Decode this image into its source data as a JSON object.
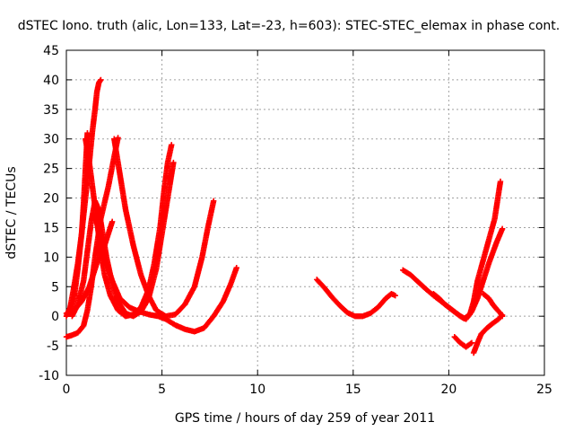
{
  "chart_data": {
    "type": "scatter",
    "title": "dSTEC Iono. truth (alic, Lon=133, Lat=-23, h=603): STEC-STEC_elemax in phase cont.",
    "xlabel": "GPS time / hours of day 259 of year 2011",
    "ylabel": "dSTEC  / TECUs",
    "xlim": [
      0,
      25
    ],
    "ylim": [
      -10,
      45
    ],
    "xticks": [
      0,
      5,
      10,
      15,
      20,
      25
    ],
    "yticks": [
      -10,
      -5,
      0,
      5,
      10,
      15,
      20,
      25,
      30,
      35,
      40,
      45
    ],
    "grid": true,
    "marker": "plus",
    "color": "#ff0000",
    "series": [
      {
        "values": [
          [
            0.0,
            -3.5
          ],
          [
            0.3,
            -3.2
          ],
          [
            0.6,
            -2.8
          ],
          [
            0.9,
            -1.6
          ],
          [
            1.1,
            1.0
          ],
          [
            1.3,
            5.0
          ],
          [
            1.5,
            10.0
          ],
          [
            1.8,
            16.5
          ],
          [
            2.2,
            22.0
          ],
          [
            2.5,
            27.0
          ],
          [
            2.7,
            30.2
          ]
        ]
      },
      {
        "values": [
          [
            0.0,
            0.0
          ],
          [
            0.2,
            1.5
          ],
          [
            0.4,
            5.0
          ],
          [
            0.6,
            9.0
          ],
          [
            0.8,
            14.0
          ],
          [
            1.0,
            20.0
          ],
          [
            1.2,
            26.0
          ],
          [
            1.35,
            31.0
          ],
          [
            1.5,
            35.0
          ],
          [
            1.6,
            38.0
          ],
          [
            1.7,
            39.5
          ],
          [
            1.8,
            40.0
          ]
        ]
      },
      {
        "values": [
          [
            0.2,
            0.5
          ],
          [
            0.4,
            3.0
          ],
          [
            0.6,
            8.0
          ],
          [
            0.8,
            14.0
          ],
          [
            0.9,
            19.0
          ],
          [
            1.0,
            25.0
          ],
          [
            1.05,
            28.0
          ],
          [
            1.1,
            31.0
          ]
        ]
      },
      {
        "values": [
          [
            1.0,
            30.0
          ],
          [
            1.2,
            26.0
          ],
          [
            1.4,
            21.0
          ],
          [
            1.6,
            16.0
          ],
          [
            1.8,
            11.0
          ],
          [
            2.0,
            7.0
          ],
          [
            2.3,
            3.5
          ],
          [
            2.7,
            1.0
          ],
          [
            3.1,
            0.0
          ],
          [
            3.5,
            0.3
          ],
          [
            3.9,
            1.5
          ],
          [
            4.3,
            4.5
          ],
          [
            4.6,
            9.0
          ],
          [
            4.9,
            15.0
          ],
          [
            5.1,
            21.0
          ],
          [
            5.3,
            26.0
          ],
          [
            5.5,
            29.0
          ]
        ]
      },
      {
        "values": [
          [
            0.3,
            0.0
          ],
          [
            0.6,
            2.0
          ],
          [
            0.9,
            6.0
          ],
          [
            1.1,
            11.0
          ],
          [
            1.3,
            16.0
          ],
          [
            1.5,
            19.5
          ],
          [
            1.7,
            18.0
          ],
          [
            1.9,
            14.0
          ],
          [
            2.1,
            10.0
          ],
          [
            2.4,
            5.5
          ],
          [
            2.7,
            2.5
          ],
          [
            3.1,
            0.5
          ],
          [
            3.5,
            0.0
          ],
          [
            3.9,
            0.8
          ],
          [
            4.3,
            3.0
          ],
          [
            4.7,
            8.0
          ],
          [
            5.0,
            14.0
          ],
          [
            5.3,
            20.0
          ],
          [
            5.6,
            26.0
          ]
        ]
      },
      {
        "values": [
          [
            0.0,
            0.5
          ],
          [
            0.4,
            1.0
          ],
          [
            0.8,
            2.5
          ],
          [
            1.2,
            5.0
          ],
          [
            1.6,
            9.0
          ],
          [
            2.0,
            12.0
          ],
          [
            2.4,
            16.0
          ]
        ]
      },
      {
        "values": [
          [
            2.5,
            30.0
          ],
          [
            2.8,
            24.0
          ],
          [
            3.1,
            18.0
          ],
          [
            3.5,
            12.0
          ],
          [
            3.9,
            7.0
          ],
          [
            4.3,
            3.5
          ],
          [
            4.7,
            1.0
          ],
          [
            5.2,
            0.0
          ],
          [
            5.7,
            0.3
          ],
          [
            6.2,
            2.0
          ],
          [
            6.7,
            5.0
          ],
          [
            7.1,
            10.0
          ],
          [
            7.4,
            15.0
          ],
          [
            7.7,
            19.5
          ]
        ]
      },
      {
        "values": [
          [
            1.5,
            17.0
          ],
          [
            1.8,
            13.0
          ],
          [
            2.1,
            9.0
          ],
          [
            2.4,
            6.0
          ],
          [
            2.8,
            3.0
          ],
          [
            3.3,
            1.5
          ],
          [
            3.8,
            0.8
          ],
          [
            4.3,
            0.3
          ],
          [
            4.8,
            0.0
          ],
          [
            5.2,
            -0.5
          ],
          [
            5.7,
            -1.5
          ],
          [
            6.2,
            -2.2
          ],
          [
            6.7,
            -2.6
          ],
          [
            7.2,
            -2.0
          ],
          [
            7.7,
            0.0
          ],
          [
            8.2,
            2.5
          ],
          [
            8.6,
            5.5
          ],
          [
            8.9,
            8.2
          ]
        ]
      },
      {
        "values": [
          [
            13.1,
            6.2
          ],
          [
            13.5,
            4.8
          ],
          [
            13.9,
            3.2
          ],
          [
            14.3,
            1.8
          ],
          [
            14.7,
            0.6
          ],
          [
            15.1,
            0.0
          ],
          [
            15.5,
            0.0
          ],
          [
            15.9,
            0.5
          ],
          [
            16.3,
            1.5
          ],
          [
            16.7,
            3.0
          ],
          [
            17.0,
            3.8
          ],
          [
            17.2,
            3.5
          ]
        ]
      },
      {
        "values": [
          [
            17.6,
            7.8
          ],
          [
            18.0,
            7.0
          ],
          [
            18.4,
            5.8
          ],
          [
            18.8,
            4.6
          ],
          [
            19.2,
            3.5
          ],
          [
            19.6,
            2.5
          ],
          [
            20.0,
            1.5
          ],
          [
            20.4,
            0.5
          ],
          [
            20.8,
            -0.4
          ],
          [
            21.1,
            0.3
          ],
          [
            21.3,
            2.5
          ],
          [
            21.5,
            6.0
          ],
          [
            21.8,
            9.5
          ],
          [
            22.1,
            13.0
          ],
          [
            22.4,
            16.5
          ],
          [
            22.7,
            22.8
          ]
        ]
      },
      {
        "values": [
          [
            19.2,
            3.8
          ],
          [
            19.5,
            3.0
          ],
          [
            19.8,
            2.0
          ],
          [
            20.2,
            1.0
          ],
          [
            20.6,
            0.0
          ],
          [
            20.9,
            -0.5
          ],
          [
            21.2,
            0.8
          ],
          [
            21.5,
            3.0
          ],
          [
            21.8,
            6.0
          ],
          [
            22.1,
            9.0
          ],
          [
            22.5,
            12.5
          ],
          [
            22.8,
            14.8
          ]
        ]
      },
      {
        "values": [
          [
            20.3,
            -3.5
          ],
          [
            20.6,
            -4.5
          ],
          [
            20.9,
            -5.2
          ],
          [
            21.2,
            -4.5
          ]
        ]
      },
      {
        "values": [
          [
            21.3,
            -6.2
          ],
          [
            21.5,
            -4.5
          ],
          [
            21.7,
            -3.0
          ],
          [
            22.0,
            -2.0
          ],
          [
            22.3,
            -1.2
          ],
          [
            22.6,
            -0.5
          ],
          [
            22.8,
            0.2
          ]
        ]
      },
      {
        "values": [
          [
            21.8,
            3.8
          ],
          [
            22.1,
            3.0
          ],
          [
            22.3,
            2.0
          ],
          [
            22.5,
            1.2
          ],
          [
            22.7,
            0.5
          ],
          [
            22.8,
            0.0
          ]
        ]
      }
    ]
  }
}
